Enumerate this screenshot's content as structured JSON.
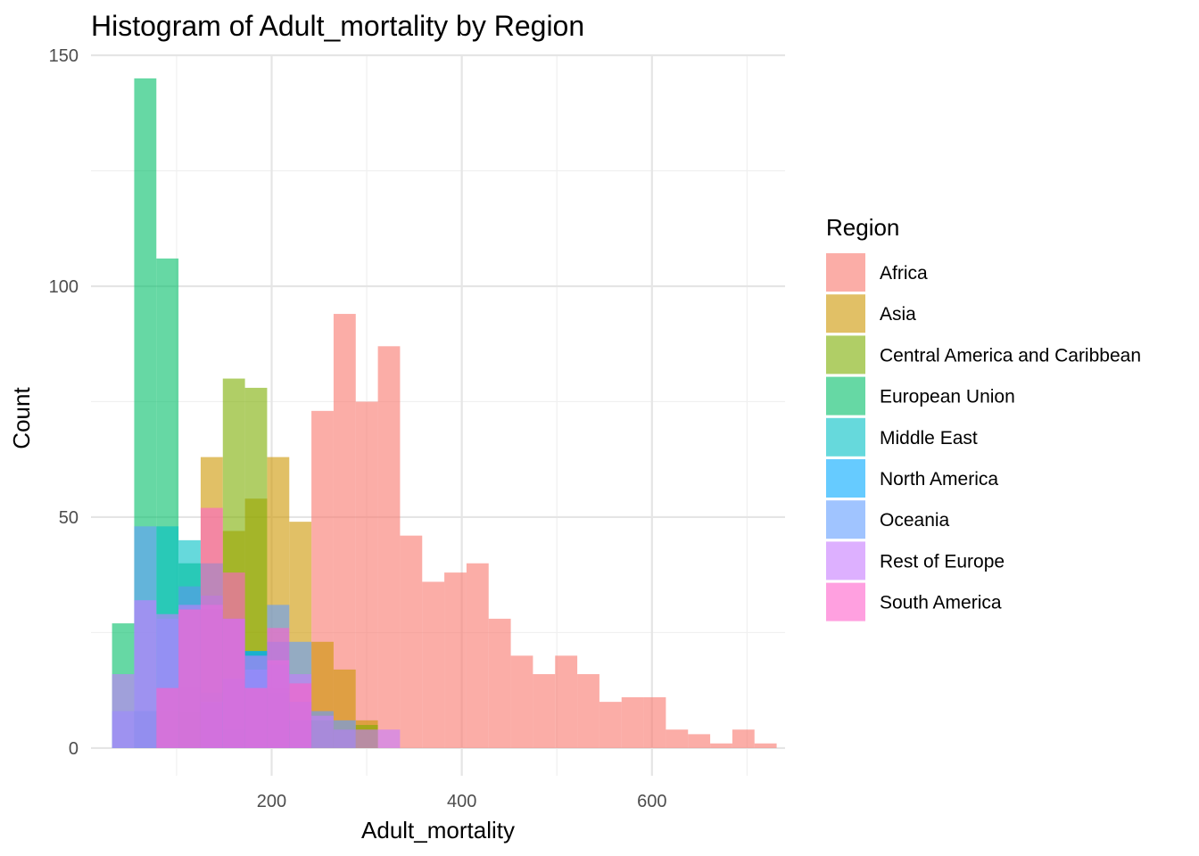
{
  "chart_data": {
    "type": "bar",
    "subtype": "histogram",
    "title": "Histogram of Adult_mortality by Region",
    "xlabel": "Adult_mortality",
    "ylabel": "Count",
    "xlim": [
      10,
      740
    ],
    "ylim": [
      -6,
      150
    ],
    "x_ticks": [
      200,
      400,
      600
    ],
    "y_ticks": [
      0,
      50,
      100,
      150
    ],
    "grid": true,
    "bin_width": 23.3,
    "legend_title": "Region",
    "legend_position": "right",
    "fill_alpha": 0.6,
    "series": [
      {
        "name": "Africa",
        "color": "#F8766D",
        "bins": [
          [
            113.7,
            13
          ],
          [
            137.0,
            30
          ],
          [
            160.3,
            14
          ],
          [
            183.6,
            13
          ],
          [
            206.9,
            13
          ],
          [
            230.2,
            14
          ],
          [
            253.5,
            73
          ],
          [
            276.8,
            94
          ],
          [
            300.1,
            75
          ],
          [
            323.4,
            87
          ],
          [
            346.7,
            46
          ],
          [
            370.0,
            36
          ],
          [
            393.3,
            38
          ],
          [
            416.6,
            40
          ],
          [
            439.9,
            28
          ],
          [
            463.2,
            20
          ],
          [
            486.5,
            16
          ],
          [
            509.8,
            20
          ],
          [
            533.1,
            16
          ],
          [
            556.4,
            10
          ],
          [
            579.7,
            11
          ],
          [
            603.0,
            11
          ],
          [
            626.3,
            4
          ],
          [
            649.6,
            3
          ],
          [
            672.9,
            1
          ],
          [
            696.2,
            4
          ],
          [
            719.5,
            1
          ]
        ]
      },
      {
        "name": "Asia",
        "color": "#CD9600",
        "bins": [
          [
            67.1,
            8
          ],
          [
            90.4,
            8
          ],
          [
            113.7,
            35
          ],
          [
            137.0,
            63
          ],
          [
            160.3,
            47
          ],
          [
            183.6,
            54
          ],
          [
            206.9,
            63
          ],
          [
            230.2,
            49
          ],
          [
            253.5,
            23
          ],
          [
            276.8,
            17
          ],
          [
            300.1,
            6
          ]
        ]
      },
      {
        "name": "Central America and Caribbean",
        "color": "#7CAE00",
        "bins": [
          [
            113.7,
            8
          ],
          [
            137.0,
            30
          ],
          [
            160.3,
            80
          ],
          [
            183.6,
            78
          ],
          [
            206.9,
            12
          ],
          [
            230.2,
            6
          ],
          [
            253.5,
            6
          ],
          [
            276.8,
            4
          ],
          [
            300.1,
            5
          ]
        ]
      },
      {
        "name": "European Union",
        "color": "#00BE67",
        "bins": [
          [
            43.8,
            27
          ],
          [
            67.1,
            145
          ],
          [
            90.4,
            106
          ],
          [
            113.7,
            40
          ],
          [
            137.0,
            12
          ],
          [
            160.3,
            4
          ]
        ]
      },
      {
        "name": "Middle East",
        "color": "#00BFC4",
        "bins": [
          [
            67.1,
            8
          ],
          [
            90.4,
            48
          ],
          [
            113.7,
            45
          ],
          [
            137.0,
            40
          ],
          [
            160.3,
            28
          ],
          [
            183.6,
            21
          ],
          [
            206.9,
            18
          ],
          [
            230.2,
            6
          ]
        ]
      },
      {
        "name": "North America",
        "color": "#00A9FF",
        "bins": [
          [
            137.0,
            10
          ],
          [
            160.3,
            15
          ],
          [
            183.6,
            21
          ],
          [
            206.9,
            23
          ],
          [
            230.2,
            10
          ]
        ]
      },
      {
        "name": "Oceania",
        "color": "#619CFF",
        "bins": [
          [
            43.8,
            8
          ],
          [
            67.1,
            48
          ],
          [
            90.4,
            28
          ],
          [
            113.7,
            35
          ],
          [
            137.0,
            33
          ],
          [
            160.3,
            28
          ],
          [
            183.6,
            17
          ],
          [
            206.9,
            31
          ],
          [
            230.2,
            23
          ],
          [
            253.5,
            8
          ],
          [
            276.8,
            6
          ]
        ]
      },
      {
        "name": "Rest of Europe",
        "color": "#C77CFF",
        "bins": [
          [
            43.8,
            16
          ],
          [
            67.1,
            32
          ],
          [
            90.4,
            29
          ],
          [
            113.7,
            31
          ],
          [
            137.0,
            31
          ],
          [
            160.3,
            28
          ],
          [
            183.6,
            20
          ],
          [
            206.9,
            19
          ],
          [
            230.2,
            16
          ],
          [
            253.5,
            7
          ],
          [
            276.8,
            4
          ],
          [
            300.1,
            4
          ],
          [
            323.4,
            4
          ]
        ]
      },
      {
        "name": "South America",
        "color": "#FF61CC",
        "bins": [
          [
            90.4,
            13
          ],
          [
            113.7,
            30
          ],
          [
            137.0,
            52
          ],
          [
            160.3,
            38
          ],
          [
            183.6,
            13
          ],
          [
            206.9,
            26
          ],
          [
            230.2,
            14
          ]
        ]
      }
    ]
  }
}
